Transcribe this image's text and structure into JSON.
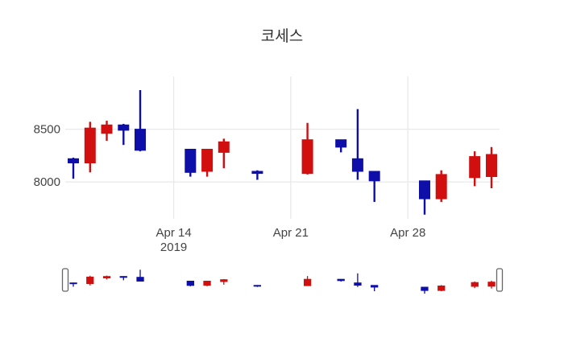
{
  "title": "코세스",
  "chart_data": {
    "type": "candlestick",
    "title": "코세스",
    "xlabel": "",
    "ylabel": "",
    "ylim": [
      7650,
      9000
    ],
    "grid": true,
    "legend": "none",
    "rangeslider": true,
    "colors": {
      "increasing": "#d20f0f",
      "decreasing": "#0e0ea8",
      "grid": "#e9e9e9",
      "tick_text": "#444444",
      "title_text": "#2e2e2e",
      "background": "#ffffff",
      "handle_fill": "#ffffff",
      "handle_border": "#666666"
    },
    "y_ticks": [
      {
        "label": "8000",
        "value": 8000
      },
      {
        "label": "8500",
        "value": 8500
      }
    ],
    "x_ticks": [
      {
        "label": "Apr 14",
        "sublabel": "2019",
        "date": "2019-04-14"
      },
      {
        "label": "Apr 21",
        "sublabel": "",
        "date": "2019-04-21"
      },
      {
        "label": "Apr 28",
        "sublabel": "",
        "date": "2019-04-28"
      }
    ],
    "candles": [
      {
        "date": "2019-04-08",
        "open": 8220,
        "high": 8230,
        "low": 8030,
        "close": 8180,
        "direction": "down"
      },
      {
        "date": "2019-04-09",
        "open": 8180,
        "high": 8570,
        "low": 8090,
        "close": 8510,
        "direction": "up"
      },
      {
        "date": "2019-04-10",
        "open": 8460,
        "high": 8580,
        "low": 8390,
        "close": 8540,
        "direction": "up"
      },
      {
        "date": "2019-04-11",
        "open": 8540,
        "high": 8550,
        "low": 8350,
        "close": 8490,
        "direction": "down"
      },
      {
        "date": "2019-04-12",
        "open": 8500,
        "high": 8870,
        "low": 8290,
        "close": 8300,
        "direction": "down"
      },
      {
        "date": "2019-04-15",
        "open": 8310,
        "high": 8310,
        "low": 8050,
        "close": 8090,
        "direction": "down"
      },
      {
        "date": "2019-04-16",
        "open": 8100,
        "high": 8310,
        "low": 8050,
        "close": 8310,
        "direction": "up"
      },
      {
        "date": "2019-04-17",
        "open": 8280,
        "high": 8410,
        "low": 8130,
        "close": 8380,
        "direction": "up"
      },
      {
        "date": "2019-04-19",
        "open": 8100,
        "high": 8110,
        "low": 8020,
        "close": 8080,
        "direction": "down"
      },
      {
        "date": "2019-04-22",
        "open": 8080,
        "high": 8560,
        "low": 8070,
        "close": 8400,
        "direction": "up"
      },
      {
        "date": "2019-04-24",
        "open": 8400,
        "high": 8400,
        "low": 8280,
        "close": 8330,
        "direction": "down"
      },
      {
        "date": "2019-04-25",
        "open": 8220,
        "high": 8690,
        "low": 8020,
        "close": 8100,
        "direction": "down"
      },
      {
        "date": "2019-04-26",
        "open": 8100,
        "high": 8100,
        "low": 7810,
        "close": 8010,
        "direction": "down"
      },
      {
        "date": "2019-04-29",
        "open": 8010,
        "high": 8010,
        "low": 7690,
        "close": 7840,
        "direction": "down"
      },
      {
        "date": "2019-04-30",
        "open": 7840,
        "high": 8110,
        "low": 7810,
        "close": 8070,
        "direction": "up"
      },
      {
        "date": "2019-05-02",
        "open": 8040,
        "high": 8290,
        "low": 7960,
        "close": 8240,
        "direction": "up"
      },
      {
        "date": "2019-05-03",
        "open": 8050,
        "high": 8330,
        "low": 7940,
        "close": 8260,
        "direction": "up"
      }
    ]
  }
}
